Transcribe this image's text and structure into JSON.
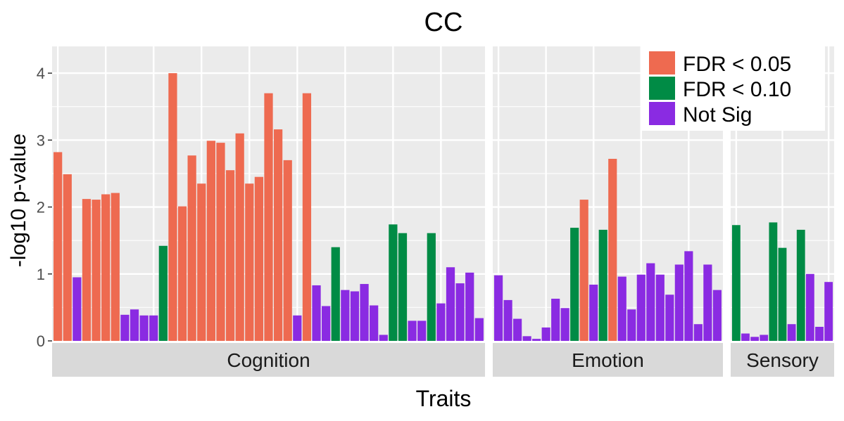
{
  "chart_data": {
    "type": "bar",
    "title": "CC",
    "xlabel": "Traits",
    "ylabel": "-log10 p-value",
    "ylim": [
      0,
      4.4
    ],
    "yticks": [
      0,
      1,
      2,
      3,
      4
    ],
    "grid": true,
    "legend": {
      "placement": "top-right",
      "entries": [
        {
          "key": "fdr05",
          "label": "FDR < 0.05",
          "color": "#EE6A50"
        },
        {
          "key": "fdr10",
          "label": "FDR < 0.10",
          "color": "#008B45"
        },
        {
          "key": "ns",
          "label": "Not Sig",
          "color": "#8A2BE2"
        }
      ]
    },
    "facets": [
      {
        "name": "Cognition",
        "values": [
          2.82,
          2.49,
          0.95,
          2.12,
          2.11,
          2.19,
          2.21,
          0.39,
          0.47,
          0.38,
          0.38,
          1.42,
          4.0,
          2.01,
          2.77,
          2.35,
          2.99,
          2.96,
          2.55,
          3.1,
          2.35,
          2.45,
          3.7,
          3.16,
          2.7,
          0.38,
          3.7,
          0.83,
          0.52,
          1.4,
          0.76,
          0.74,
          0.85,
          0.53,
          0.09,
          1.74,
          1.61,
          0.3,
          0.3,
          1.61,
          0.56,
          1.1,
          0.86,
          1.02,
          0.34
        ],
        "groups": [
          "fdr05",
          "fdr05",
          "ns",
          "fdr05",
          "fdr05",
          "fdr05",
          "fdr05",
          "ns",
          "ns",
          "ns",
          "ns",
          "fdr10",
          "fdr05",
          "fdr05",
          "fdr05",
          "fdr05",
          "fdr05",
          "fdr05",
          "fdr05",
          "fdr05",
          "fdr05",
          "fdr05",
          "fdr05",
          "fdr05",
          "fdr05",
          "ns",
          "fdr05",
          "ns",
          "ns",
          "fdr10",
          "ns",
          "ns",
          "ns",
          "ns",
          "ns",
          "fdr10",
          "fdr10",
          "ns",
          "ns",
          "fdr10",
          "ns",
          "ns",
          "ns",
          "ns",
          "ns"
        ]
      },
      {
        "name": "Emotion",
        "values": [
          0.98,
          0.61,
          0.33,
          0.07,
          0.03,
          0.2,
          0.63,
          0.49,
          1.69,
          2.11,
          0.84,
          1.66,
          2.72,
          0.96,
          0.47,
          0.99,
          1.16,
          0.99,
          0.69,
          1.14,
          1.34,
          0.25,
          1.14,
          0.76
        ],
        "groups": [
          "ns",
          "ns",
          "ns",
          "ns",
          "ns",
          "ns",
          "ns",
          "ns",
          "fdr10",
          "fdr05",
          "ns",
          "fdr10",
          "fdr05",
          "ns",
          "ns",
          "ns",
          "ns",
          "ns",
          "ns",
          "ns",
          "ns",
          "ns",
          "ns",
          "ns"
        ]
      },
      {
        "name": "Sensory",
        "values": [
          1.73,
          0.11,
          0.06,
          0.09,
          1.77,
          1.39,
          0.25,
          1.66,
          1.0,
          0.21,
          0.88
        ],
        "groups": [
          "fdr10",
          "ns",
          "ns",
          "ns",
          "fdr10",
          "fdr10",
          "ns",
          "fdr10",
          "ns",
          "ns",
          "ns"
        ]
      }
    ]
  }
}
